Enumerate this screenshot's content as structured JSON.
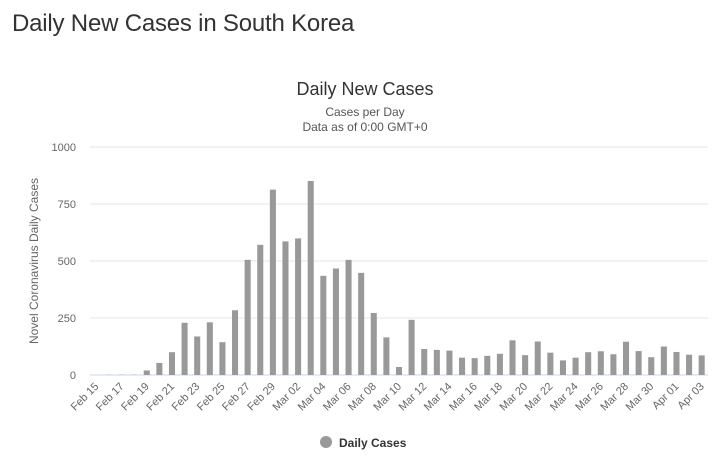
{
  "page": {
    "title": "Daily New Cases in South Korea"
  },
  "chart_data": {
    "type": "bar",
    "title": "Daily New Cases",
    "subtitle_1": "Cases per Day",
    "subtitle_2": "Data as of 0:00 GMT+0",
    "xlabel": "",
    "ylabel": "Novel Coronavirus Daily Cases",
    "ylim": [
      0,
      1000
    ],
    "yticks": [
      "0",
      "250",
      "500",
      "750",
      "1000"
    ],
    "ytick_values": [
      0,
      250,
      500,
      750,
      1000
    ],
    "bar_color": "#999999",
    "categories": [
      "Feb 15",
      "Feb 16",
      "Feb 17",
      "Feb 18",
      "Feb 19",
      "Feb 20",
      "Feb 21",
      "Feb 22",
      "Feb 23",
      "Feb 24",
      "Feb 25",
      "Feb 26",
      "Feb 27",
      "Feb 28",
      "Feb 29",
      "Mar 01",
      "Mar 02",
      "Mar 03",
      "Mar 04",
      "Mar 05",
      "Mar 06",
      "Mar 07",
      "Mar 08",
      "Mar 09",
      "Mar 10",
      "Mar 11",
      "Mar 12",
      "Mar 13",
      "Mar 14",
      "Mar 15",
      "Mar 16",
      "Mar 17",
      "Mar 18",
      "Mar 19",
      "Mar 20",
      "Mar 21",
      "Mar 22",
      "Mar 23",
      "Mar 24",
      "Mar 25",
      "Mar 26",
      "Mar 27",
      "Mar 28",
      "Mar 29",
      "Mar 30",
      "Mar 31",
      "Apr 01",
      "Apr 02",
      "Apr 03"
    ],
    "xtick_labels": [
      "Feb 15",
      "Feb 17",
      "Feb 19",
      "Feb 21",
      "Feb 23",
      "Feb 25",
      "Feb 27",
      "Feb 29",
      "Mar 02",
      "Mar 04",
      "Mar 06",
      "Mar 08",
      "Mar 10",
      "Mar 12",
      "Mar 14",
      "Mar 16",
      "Mar 18",
      "Mar 20",
      "Mar 22",
      "Mar 24",
      "Mar 26",
      "Mar 28",
      "Mar 30",
      "Apr 01",
      "Apr 03"
    ],
    "series": [
      {
        "name": "Daily Cases",
        "values": [
          0,
          1,
          1,
          1,
          20,
          53,
          100,
          229,
          169,
          231,
          144,
          284,
          505,
          571,
          813,
          586,
          599,
          851,
          435,
          467,
          505,
          448,
          272,
          165,
          35,
          242,
          114,
          110,
          107,
          76,
          74,
          84,
          93,
          152,
          87,
          147,
          98,
          64,
          76,
          100,
          104,
          91,
          146,
          105,
          78,
          125,
          101,
          89,
          86
        ]
      }
    ],
    "legend": {
      "label": "Daily Cases",
      "position": "bottom-center"
    }
  }
}
